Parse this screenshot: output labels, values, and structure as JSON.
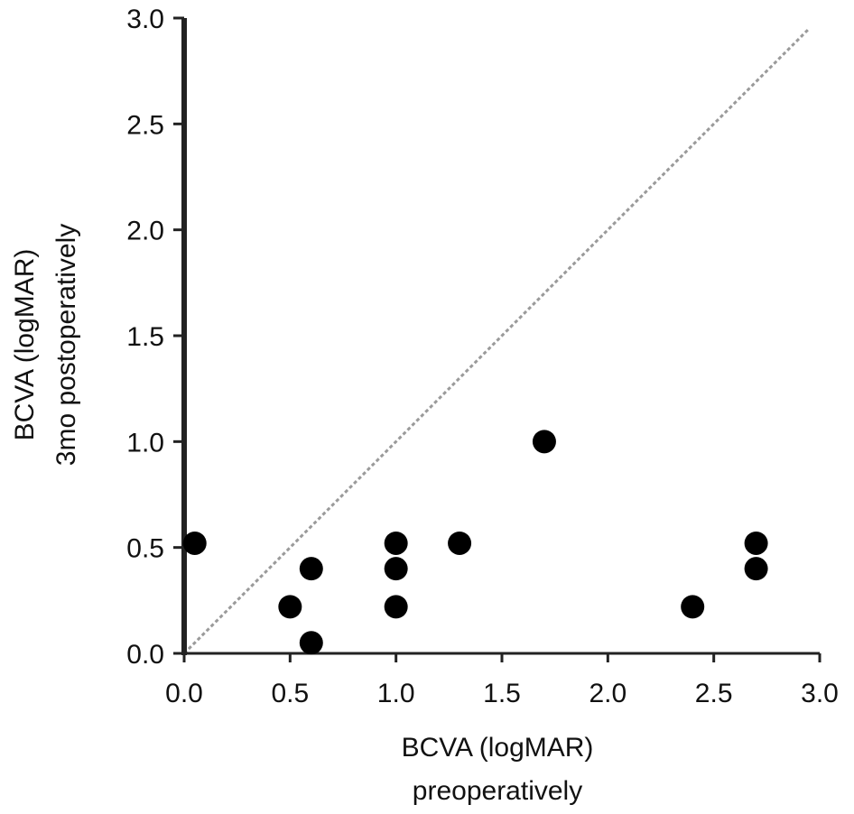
{
  "chart_data": {
    "type": "scatter",
    "title": "",
    "xlabel": [
      "BCVA (logMAR)",
      "preoperatively"
    ],
    "ylabel": [
      "BCVA (logMAR)",
      "3mo postoperatively"
    ],
    "xlim": [
      0,
      3
    ],
    "ylim": [
      0,
      3
    ],
    "xticks": [
      "0.0",
      "0.5",
      "1.0",
      "1.5",
      "2.0",
      "2.5",
      "3.0"
    ],
    "yticks": [
      "0.0",
      "0.5",
      "1.0",
      "1.5",
      "2.0",
      "2.5",
      "3.0"
    ],
    "grid": false,
    "legend": "none",
    "reference_line": {
      "type": "identity",
      "from": [
        0,
        0
      ],
      "to": [
        2.95,
        2.95
      ],
      "style": "dashed",
      "color": "#9a9a9a"
    },
    "point_color": "#000000",
    "axis_color": "#222222",
    "series": [
      {
        "x": [
          0.05,
          0.5,
          0.6,
          0.6,
          1.0,
          1.0,
          1.0,
          1.3,
          1.7,
          2.4,
          2.7,
          2.7
        ],
        "y": [
          0.52,
          0.22,
          0.4,
          0.05,
          0.52,
          0.4,
          0.22,
          0.52,
          1.0,
          0.22,
          0.52,
          0.4
        ]
      }
    ]
  }
}
